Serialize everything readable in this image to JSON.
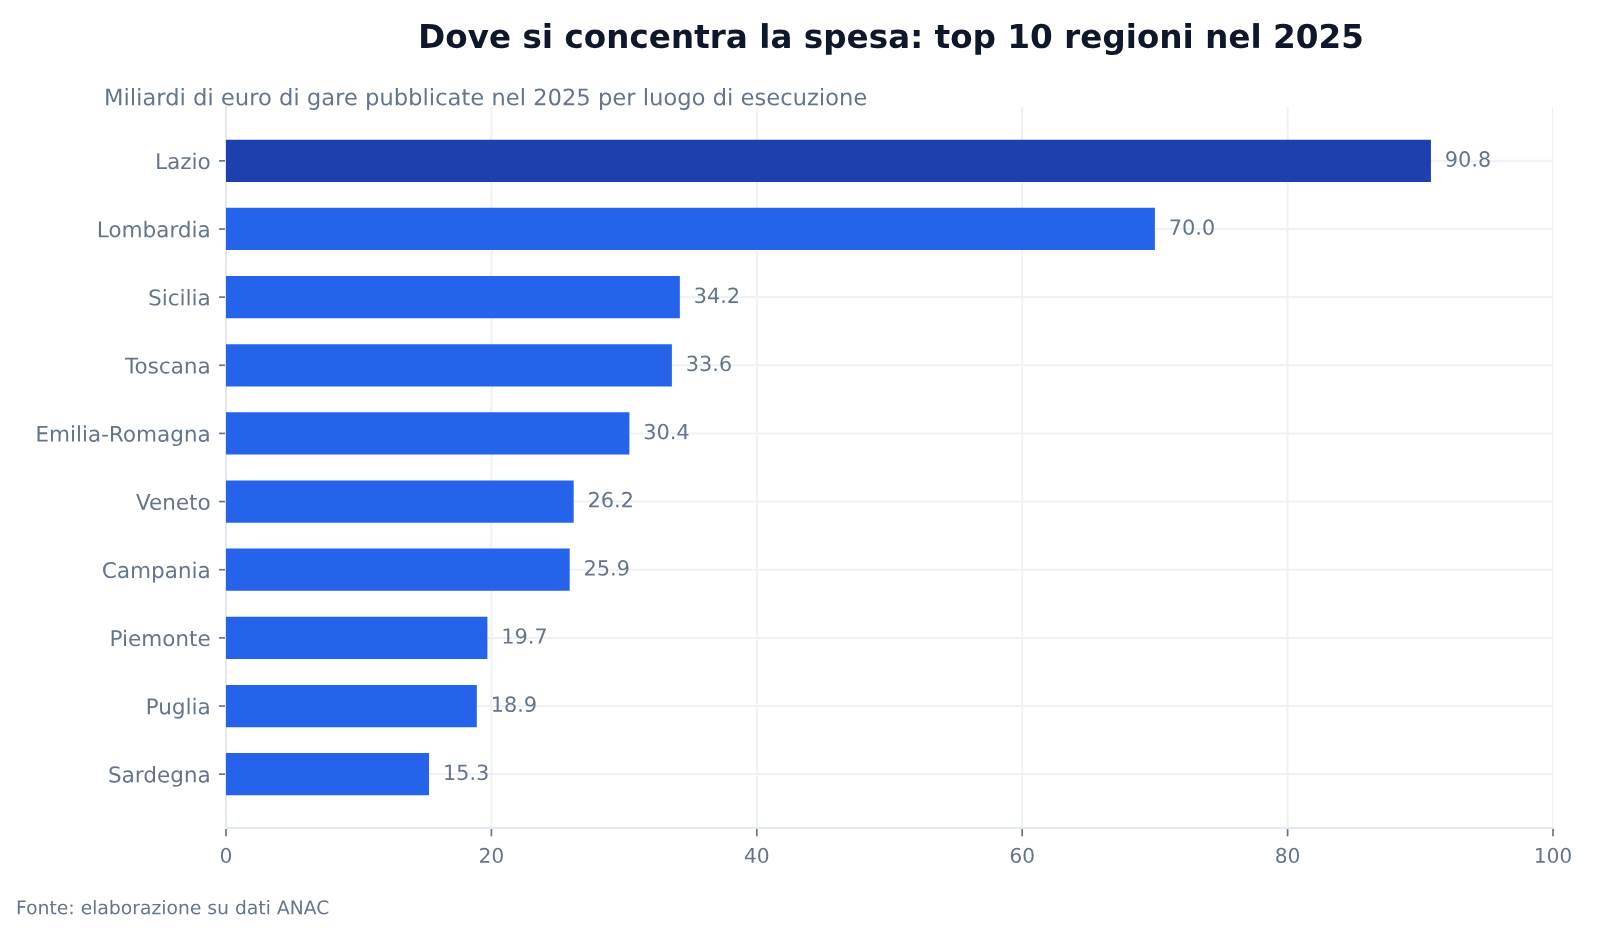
{
  "chart_data": {
    "type": "bar",
    "orientation": "horizontal",
    "title": "Dove si concentra la spesa: top 10 regioni nel 2025",
    "subtitle": "Miliardi di euro di gare pubblicate nel 2025 per luogo di esecuzione",
    "categories": [
      "Lazio",
      "Lombardia",
      "Sicilia",
      "Toscana",
      "Emilia-Romagna",
      "Veneto",
      "Campania",
      "Piemonte",
      "Puglia",
      "Sardegna"
    ],
    "values": [
      90.8,
      70.0,
      34.2,
      33.6,
      30.4,
      26.2,
      25.9,
      19.7,
      18.9,
      15.3
    ],
    "value_labels": [
      "90.8",
      "70.0",
      "34.2",
      "33.6",
      "30.4",
      "26.2",
      "25.9",
      "19.7",
      "18.9",
      "15.3"
    ],
    "colors": [
      "#1e40af",
      "#2563eb",
      "#2563eb",
      "#2563eb",
      "#2563eb",
      "#2563eb",
      "#2563eb",
      "#2563eb",
      "#2563eb",
      "#2563eb"
    ],
    "xlim": [
      0,
      100
    ],
    "xticks": [
      0,
      20,
      40,
      60,
      80,
      100
    ],
    "grid": true,
    "annotations": [
      "Fonte: elaborazione su dati ANAC"
    ]
  }
}
